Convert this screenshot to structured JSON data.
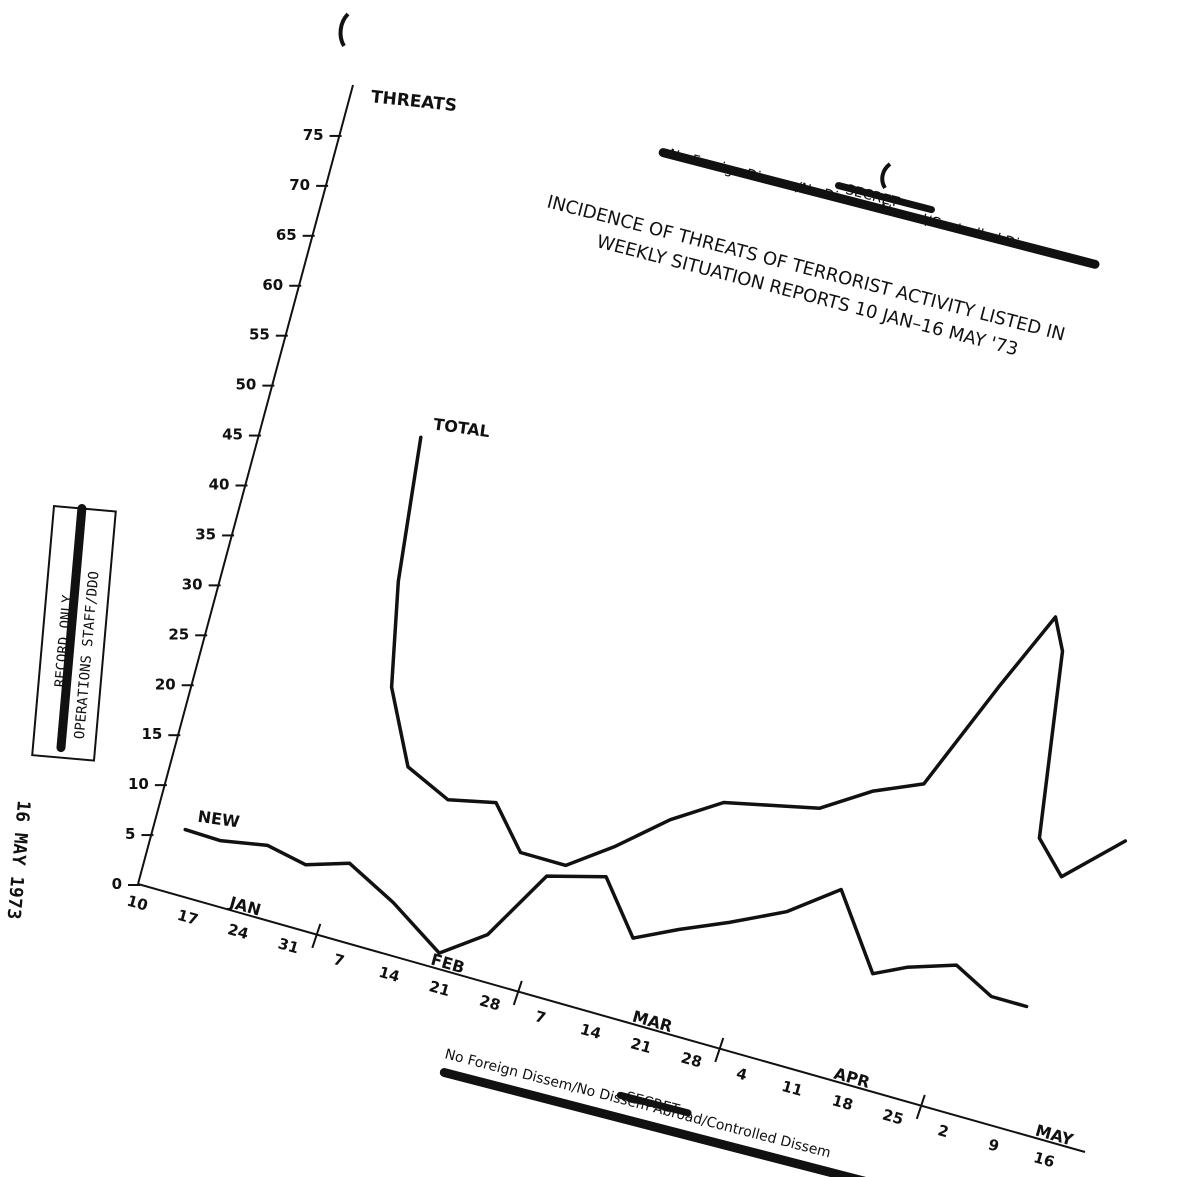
{
  "classification": {
    "top_caveat": "No Foreign Dissem/No Dissem Abroad/Controlled Dissem",
    "top_marking": "SECRET",
    "bottom_caveat": "No Foreign Dissem/No Dissem Abroad/Controlled Dissem",
    "bottom_marking": "SECRET"
  },
  "stamp": {
    "line1": "RECORD ONLY",
    "line2": "OPERATIONS STAFF/DDO",
    "date": "16 MAY 1973"
  },
  "chart_data": {
    "type": "line",
    "title": "INCIDENCE OF THREATS OF TERRORIST ACTIVITY LISTED IN",
    "subtitle": "WEEKLY SITUATION REPORTS 10 JAN–16 MAY '73",
    "ylabel": "THREATS",
    "xlabel": "",
    "ylim": [
      0,
      75
    ],
    "y_ticks": [
      "75",
      "70",
      "65",
      "60",
      "55",
      "50",
      "45",
      "40",
      "35",
      "30",
      "25",
      "20",
      "15",
      "10",
      "5",
      "0"
    ],
    "y_tick_values": [
      75,
      70,
      65,
      60,
      55,
      50,
      45,
      40,
      35,
      30,
      25,
      20,
      15,
      10,
      5,
      0
    ],
    "x": [
      "10",
      "17",
      "24",
      "31",
      "7",
      "14",
      "21",
      "28",
      "7",
      "14",
      "21",
      "28",
      "4",
      "11",
      "18",
      "25",
      "2",
      "9",
      "16"
    ],
    "months": [
      {
        "label": "JAN",
        "start": 0
      },
      {
        "label": "FEB",
        "start": 4
      },
      {
        "label": "MAR",
        "start": 8
      },
      {
        "label": "APR",
        "start": 12
      },
      {
        "label": "MAY",
        "start": 16
      }
    ],
    "series": [
      {
        "name": "TOTAL",
        "x": [
          3,
          3.3,
          3.7,
          4.4,
          5.3,
          6.2,
          6.9,
          7.8,
          8.6,
          9.5,
          10.4,
          11.3,
          12.2,
          13.1,
          14.0,
          14.9,
          15.6,
          15.9,
          16.4,
          17.0,
          18.0
        ],
        "values": [
          49,
          35,
          25,
          18,
          16,
          17,
          13,
          13,
          16,
          20,
          23,
          24,
          25,
          28,
          30,
          41,
          49,
          46,
          28,
          25,
          30
        ]
      },
      {
        "name": "NEW",
        "x": [
          0.6,
          1.3,
          2.2,
          3.0,
          3.8,
          4.8,
          5.9,
          6.7,
          7.5,
          8.6,
          9.4,
          10.2,
          11.1,
          12.1,
          13.0,
          14.0,
          14.6,
          15.5,
          16.3,
          17.0
        ],
        "values": [
          6.3,
          6.2,
          7.0,
          6.2,
          7.5,
          5.0,
          1.5,
          4.5,
          11.5,
          13.0,
          8.0,
          10.0,
          12.0,
          14.5,
          18.0,
          11.0,
          12.5,
          14.0,
          12.0,
          12.0
        ]
      }
    ],
    "grid": false,
    "legend": "inline labels"
  }
}
